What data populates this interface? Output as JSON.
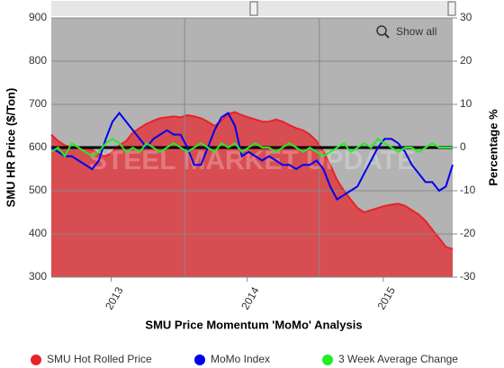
{
  "chart_data": {
    "type": "line",
    "title": "SMU Price Momentum 'MoMo' Analysis",
    "y_label": "SMU HR Price ($/Ton)",
    "y2_label": "Percentage %",
    "watermark": "STEEL MARKET UPDATE",
    "button": "Show all",
    "grid": true,
    "x": [
      2012.56,
      2012.61,
      2012.66,
      2012.71,
      2012.76,
      2012.81,
      2012.86,
      2012.91,
      2012.96,
      2013.01,
      2013.06,
      2013.11,
      2013.16,
      2013.21,
      2013.26,
      2013.31,
      2013.36,
      2013.41,
      2013.46,
      2013.51,
      2013.56,
      2013.61,
      2013.66,
      2013.71,
      2013.76,
      2013.81,
      2013.86,
      2013.91,
      2013.96,
      2014.01,
      2014.06,
      2014.11,
      2014.16,
      2014.21,
      2014.26,
      2014.31,
      2014.36,
      2014.41,
      2014.46,
      2014.51,
      2014.56,
      2014.61,
      2014.66,
      2014.71,
      2014.76,
      2014.81,
      2014.86,
      2014.91,
      2014.96,
      2015.01,
      2015.06,
      2015.11,
      2015.16,
      2015.21,
      2015.26,
      2015.31,
      2015.36,
      2015.41,
      2015.46,
      2015.51
    ],
    "xlim": [
      2012.56,
      2015.51
    ],
    "xticks": [
      {
        "value": 2013,
        "label": "2013"
      },
      {
        "value": 2014,
        "label": "2014"
      },
      {
        "value": 2015,
        "label": "2015"
      }
    ],
    "xgrid": [
      2013.54,
      2014.53
    ],
    "ylim": [
      300,
      900
    ],
    "yticks": [
      300,
      400,
      500,
      600,
      700,
      800,
      900
    ],
    "y2lim": [
      -30,
      30
    ],
    "y2ticks": [
      -30,
      -20,
      -10,
      0,
      10,
      20,
      30
    ],
    "y2_reference": 0,
    "series": [
      {
        "name": "SMU Hot Rolled Price",
        "color": "#e8222a",
        "type": "area",
        "axis": "y",
        "values": [
          630,
          615,
          605,
          600,
          600,
          598,
          595,
          585,
          580,
          590,
          605,
          615,
          635,
          645,
          655,
          662,
          668,
          670,
          672,
          670,
          675,
          672,
          668,
          660,
          650,
          662,
          678,
          682,
          675,
          670,
          665,
          660,
          660,
          665,
          660,
          652,
          645,
          640,
          630,
          615,
          590,
          560,
          525,
          500,
          480,
          460,
          450,
          455,
          460,
          465,
          468,
          470,
          465,
          455,
          445,
          430,
          410,
          390,
          370,
          365
        ]
      },
      {
        "name": "MoMo Index",
        "color": "#0000ee",
        "type": "line",
        "axis": "y2",
        "values": [
          0,
          -1,
          -2,
          -2,
          -3,
          -4,
          -5,
          -3,
          2,
          6,
          8,
          6,
          4,
          2,
          0,
          2,
          3,
          4,
          3,
          3,
          0,
          -4,
          -4,
          0,
          4,
          7,
          8,
          5,
          -2,
          -1,
          -2,
          -3,
          -2,
          -3,
          -4,
          -4,
          -5,
          -4,
          -4,
          -3,
          -5,
          -9,
          -12,
          -11,
          -10,
          -9,
          -6,
          -3,
          0,
          2,
          2,
          1,
          -1,
          -4,
          -6,
          -8,
          -8,
          -10,
          -9,
          -4
        ]
      },
      {
        "name": "3 Week Average Change",
        "color": "#22ee22",
        "type": "line",
        "axis": "y2",
        "values": [
          -1,
          0,
          -2,
          1,
          0,
          -1,
          -2,
          -1,
          1,
          2,
          1,
          -1,
          0,
          -1,
          1,
          0,
          -1,
          0,
          1,
          0,
          -1,
          0,
          1,
          0,
          -1,
          1,
          0,
          1,
          -1,
          0,
          1,
          0,
          0,
          -1,
          0,
          1,
          0,
          -1,
          0,
          -1,
          -2,
          -1,
          0,
          1,
          -1,
          0,
          1,
          0,
          2,
          1,
          0,
          -1,
          0,
          0,
          -1,
          0,
          1,
          0,
          0,
          0
        ]
      }
    ]
  }
}
